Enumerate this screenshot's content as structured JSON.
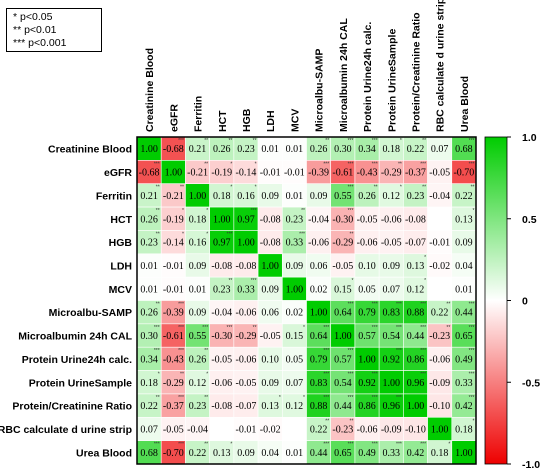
{
  "legend_box": {
    "line1": "* p<0.05",
    "line2": "** p<0.01",
    "line3": "*** p<0.001"
  },
  "chart_data": {
    "type": "heatmap",
    "title": "",
    "xlabel": "",
    "ylabel": "",
    "columns": [
      "Creatinine Blood",
      "eGFR",
      "Ferritin",
      "HCT",
      "HGB",
      "LDH",
      "MCV",
      "Microalbu-SAMP",
      "Microalbumin 24h CAL",
      "Protein Urine24h calc.",
      "Protein UrineSample",
      "Protein/Creatinine Ratio",
      "RBC calculate d urine strip",
      "Urea Blood"
    ],
    "rows": [
      "Creatinine Blood",
      "eGFR",
      "Ferritin",
      "HCT",
      "HGB",
      "LDH",
      "MCV",
      "Microalbu-SAMP",
      "Microalbumin 24h CAL",
      "Protein Urine24h calc.",
      "Protein UrineSample",
      "Protein/Creatinine Ratio",
      "RBC calculate d urine strip",
      "Urea Blood"
    ],
    "labels": [
      [
        "1.00",
        "-0.68",
        "0.21",
        "0.26",
        "0.23",
        "0.01",
        "0.01",
        "0.26",
        "0.30",
        "0.34",
        "0.18",
        "0.22",
        "0.07",
        "0.68"
      ],
      [
        "-0.68",
        "1.00",
        "-0.21",
        "-0.19",
        "-0.14",
        "-0.01",
        "-0.01",
        "-0.39",
        "-0.61",
        "-0.43",
        "-0.29",
        "-0.37",
        "-0.05",
        "-0.70"
      ],
      [
        "0.21",
        "-0.21",
        "1.00",
        "0.18",
        "0.16",
        "0.09",
        "0.01",
        "0.09",
        "0.55",
        "0.26",
        "0.12",
        "0.23",
        "-0.04",
        "0.22"
      ],
      [
        "0.26",
        "-0.19",
        "0.18",
        "1.00",
        "0.97",
        "-0.08",
        "0.23",
        "-0.04",
        "-0.30",
        "-0.05",
        "-0.06",
        "-0.08",
        "",
        "0.13"
      ],
      [
        "0.23",
        "-0.14",
        "0.16",
        "0.97",
        "1.00",
        "-0.08",
        "0.33",
        "-0.06",
        "-0.29",
        "-0.06",
        "-0.05",
        "-0.07",
        "-0.01",
        "0.09"
      ],
      [
        "0.01",
        "-0.01",
        "0.09",
        "-0.08",
        "-0.08",
        "1.00",
        "0.09",
        "0.06",
        "-0.05",
        "0.10",
        "0.09",
        "0.13",
        "-0.02",
        "0.04"
      ],
      [
        "0.01",
        "-0.01",
        "0.01",
        "0.23",
        "0.33",
        "0.09",
        "1.00",
        "0.02",
        "0.15",
        "0.05",
        "0.07",
        "0.12",
        "",
        "0.01"
      ],
      [
        "0.26",
        "-0.39",
        "0.09",
        "-0.04",
        "-0.06",
        "0.06",
        "0.02",
        "1.00",
        "0.64",
        "0.79",
        "0.83",
        "0.88",
        "0.22",
        "0.44"
      ],
      [
        "0.30",
        "-0.61",
        "0.55",
        "-0.30",
        "-0.29",
        "-0.05",
        "0.15",
        "0.64",
        "1.00",
        "0.57",
        "0.54",
        "0.44",
        "-0.23",
        "0.65"
      ],
      [
        "0.34",
        "-0.43",
        "0.26",
        "-0.05",
        "-0.06",
        "0.10",
        "0.05",
        "0.79",
        "0.57",
        "1.00",
        "0.92",
        "0.86",
        "-0.06",
        "0.49"
      ],
      [
        "0.18",
        "-0.29",
        "0.12",
        "-0.06",
        "-0.05",
        "0.09",
        "0.07",
        "0.83",
        "0.54",
        "0.92",
        "1.00",
        "0.96",
        "-0.09",
        "0.33"
      ],
      [
        "0.22",
        "-0.37",
        "0.23",
        "-0.08",
        "-0.07",
        "0.13",
        "0.12",
        "0.88",
        "0.44",
        "0.86",
        "0.96",
        "1.00",
        "-0.10",
        "0.42"
      ],
      [
        "0.07",
        "-0.05",
        "-0.04",
        "",
        "-0.01",
        "-0.02",
        "",
        "0.22",
        "-0.23",
        "-0.06",
        "-0.09",
        "-0.10",
        "1.00",
        "0.18"
      ],
      [
        "0.68",
        "-0.70",
        "0.22",
        "0.13",
        "0.09",
        "0.04",
        "0.01",
        "0.44",
        "0.65",
        "0.49",
        "0.33",
        "0.42",
        "0.18",
        "1.00"
      ]
    ],
    "colorbar": {
      "ticks": [
        "1.0",
        "0.5",
        "0",
        "-0.5",
        "-1.0"
      ],
      "min": -1.0,
      "max": 1.0,
      "colors": {
        "positive": "#00cc00",
        "zero": "#ffffff",
        "negative": "#ee0000"
      }
    }
  }
}
